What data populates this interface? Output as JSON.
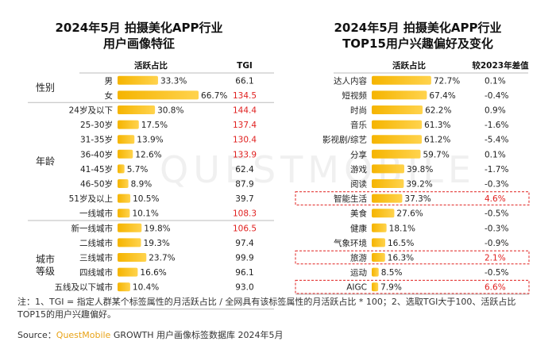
{
  "colors": {
    "bar": "#f5b400",
    "bar_light": "#ffd34d",
    "highlight": "#e0201f",
    "normal_text": "#222222",
    "divider": "#bbbbbb",
    "box": "#e0201f"
  },
  "chart_data": [
    {
      "type": "bar",
      "title_line1": "2024年5月 拍摄美化APP行业",
      "title_line2": "用户画像特征",
      "col_active": "活跃占比",
      "col_tgi": "TGI",
      "groups": [
        {
          "name": "性别",
          "size": 2
        },
        {
          "name": "年龄",
          "size": 8
        },
        {
          "name": "城市\n等级",
          "size": 6
        }
      ],
      "categories": [
        "男",
        "女",
        "24岁及以下",
        "25-30岁",
        "31-35岁",
        "36-40岁",
        "41-45岁",
        "46-50岁",
        "51岁及以上",
        "一线城市",
        "新一线城市",
        "二线城市",
        "三线城市",
        "四线城市",
        "五线及以下城市"
      ],
      "values": [
        33.3,
        66.7,
        30.8,
        17.5,
        13.9,
        12.6,
        5.7,
        8.9,
        10.5,
        10.1,
        19.8,
        19.3,
        23.7,
        16.6,
        10.4
      ],
      "value_labels": [
        "33.3%",
        "66.7%",
        "30.8%",
        "17.5%",
        "13.9%",
        "12.6%",
        "5.7%",
        "8.9%",
        "10.5%",
        "10.1%",
        "19.8%",
        "19.3%",
        "23.7%",
        "16.6%",
        "10.4%"
      ],
      "tgi": [
        "66.1",
        "134.5",
        "144.4",
        "137.4",
        "130.4",
        "133.9",
        "62.4",
        "87.9",
        "39.7",
        "108.3",
        "106.5",
        "97.4",
        "99.9",
        "96.1",
        "93.0"
      ],
      "tgi_highlight": [
        false,
        true,
        true,
        true,
        true,
        true,
        false,
        false,
        false,
        true,
        true,
        false,
        false,
        false,
        false
      ]
    },
    {
      "type": "bar",
      "title_line1": "2024年5月 拍摄美化APP行业",
      "title_line2": "TOP15用户兴趣偏好及变化",
      "col_active": "活跃占比",
      "col_diff": "较2023年差值",
      "categories": [
        "达人内容",
        "短视频",
        "时尚",
        "音乐",
        "影视剧/综艺",
        "分享",
        "游戏",
        "阅读",
        "智能生活",
        "美食",
        "健康",
        "气象环境",
        "旅游",
        "运动",
        "AIGC"
      ],
      "values": [
        72.7,
        67.4,
        62.2,
        61.3,
        61.2,
        59.7,
        39.8,
        39.2,
        37.3,
        27.6,
        18.1,
        16.5,
        16.3,
        8.5,
        7.9
      ],
      "value_labels": [
        "72.7%",
        "67.4%",
        "62.2%",
        "61.3%",
        "61.2%",
        "59.7%",
        "39.8%",
        "39.2%",
        "37.3%",
        "27.6%",
        "18.1%",
        "16.5%",
        "16.3%",
        "8.5%",
        "7.9%"
      ],
      "diff": [
        "0.1%",
        "-0.4%",
        "0.9%",
        "-1.6%",
        "-5.4%",
        "0.1%",
        "-1.7%",
        "-0.3%",
        "4.6%",
        "-0.5%",
        "-0.3%",
        "-0.9%",
        "2.1%",
        "-0.5%",
        "6.6%"
      ],
      "boxed": [
        false,
        false,
        false,
        false,
        false,
        false,
        false,
        false,
        true,
        false,
        false,
        false,
        true,
        false,
        true
      ]
    }
  ],
  "note": "注：1、TGI = 指定人群某个标签属性的月活跃占比 / 全网具有该标签属性的月活跃占比 * 100；2、选取TGI大于100、活跃占比TOP15的用户兴趣偏好。",
  "source": {
    "label": "Source：",
    "brand_q": "Quest",
    "brand_rest": "Mobile",
    "text": " GROWTH 用户画像标签数据库 2024年5月"
  },
  "watermark": "QUESTMOBILE"
}
